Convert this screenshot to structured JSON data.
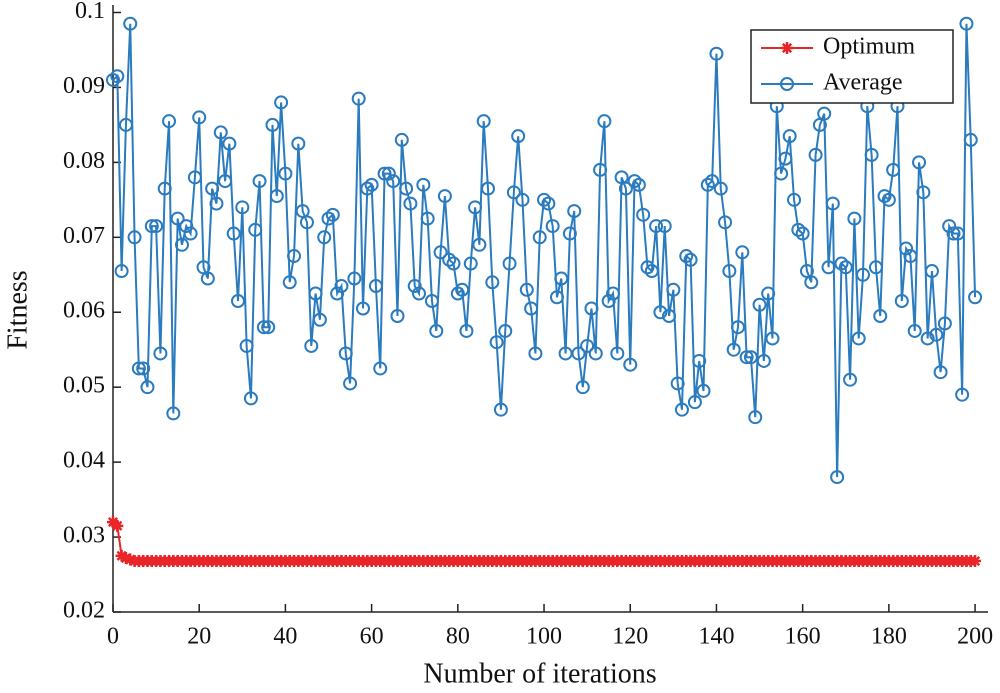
{
  "chart_data": {
    "type": "line",
    "xlabel": "Number of iterations",
    "ylabel": "Fitness",
    "x": [
      0,
      1,
      2,
      3,
      4,
      5,
      6,
      7,
      8,
      9,
      10,
      11,
      12,
      13,
      14,
      15,
      16,
      17,
      18,
      19,
      20,
      21,
      22,
      23,
      24,
      25,
      26,
      27,
      28,
      29,
      30,
      31,
      32,
      33,
      34,
      35,
      36,
      37,
      38,
      39,
      40,
      41,
      42,
      43,
      44,
      45,
      46,
      47,
      48,
      49,
      50,
      51,
      52,
      53,
      54,
      55,
      56,
      57,
      58,
      59,
      60,
      61,
      62,
      63,
      64,
      65,
      66,
      67,
      68,
      69,
      70,
      71,
      72,
      73,
      74,
      75,
      76,
      77,
      78,
      79,
      80,
      81,
      82,
      83,
      84,
      85,
      86,
      87,
      88,
      89,
      90,
      91,
      92,
      93,
      94,
      95,
      96,
      97,
      98,
      99,
      100,
      101,
      102,
      103,
      104,
      105,
      106,
      107,
      108,
      109,
      110,
      111,
      112,
      113,
      114,
      115,
      116,
      117,
      118,
      119,
      120,
      121,
      122,
      123,
      124,
      125,
      126,
      127,
      128,
      129,
      130,
      131,
      132,
      133,
      134,
      135,
      136,
      137,
      138,
      139,
      140,
      141,
      142,
      143,
      144,
      145,
      146,
      147,
      148,
      149,
      150,
      151,
      152,
      153,
      154,
      155,
      156,
      157,
      158,
      159,
      160,
      161,
      162,
      163,
      164,
      165,
      166,
      167,
      168,
      169,
      170,
      171,
      172,
      173,
      174,
      175,
      176,
      177,
      178,
      179,
      180,
      181,
      182,
      183,
      184,
      185,
      186,
      187,
      188,
      189,
      190,
      191,
      192,
      193,
      194,
      195,
      196,
      197,
      198,
      199,
      200
    ],
    "series": [
      {
        "name": "Optimum",
        "color": "#e8262a",
        "marker": "star",
        "values": [
          0.032,
          0.0315,
          0.0275,
          0.0272,
          0.027,
          0.0268,
          0.0268,
          0.0268,
          0.0268,
          0.0268,
          0.0268,
          0.0268,
          0.0268,
          0.0268,
          0.0268,
          0.0268,
          0.0268,
          0.0268,
          0.0268,
          0.0268,
          0.0268,
          0.0268,
          0.0268,
          0.0268,
          0.0268,
          0.0268,
          0.0268,
          0.0268,
          0.0268,
          0.0268,
          0.0268,
          0.0268,
          0.0268,
          0.0268,
          0.0268,
          0.0268,
          0.0268,
          0.0268,
          0.0268,
          0.0268,
          0.0268,
          0.0268,
          0.0268,
          0.0268,
          0.0268,
          0.0268,
          0.0268,
          0.0268,
          0.0268,
          0.0268,
          0.0268,
          0.0268,
          0.0268,
          0.0268,
          0.0268,
          0.0268,
          0.0268,
          0.0268,
          0.0268,
          0.0268,
          0.0268,
          0.0268,
          0.0268,
          0.0268,
          0.0268,
          0.0268,
          0.0268,
          0.0268,
          0.0268,
          0.0268,
          0.0268,
          0.0268,
          0.0268,
          0.0268,
          0.0268,
          0.0268,
          0.0268,
          0.0268,
          0.0268,
          0.0268,
          0.0268,
          0.0268,
          0.0268,
          0.0268,
          0.0268,
          0.0268,
          0.0268,
          0.0268,
          0.0268,
          0.0268,
          0.0268,
          0.0268,
          0.0268,
          0.0268,
          0.0268,
          0.0268,
          0.0268,
          0.0268,
          0.0268,
          0.0268,
          0.0268,
          0.0268,
          0.0268,
          0.0268,
          0.0268,
          0.0268,
          0.0268,
          0.0268,
          0.0268,
          0.0268,
          0.0268,
          0.0268,
          0.0268,
          0.0268,
          0.0268,
          0.0268,
          0.0268,
          0.0268,
          0.0268,
          0.0268,
          0.0268,
          0.0268,
          0.0268,
          0.0268,
          0.0268,
          0.0268,
          0.0268,
          0.0268,
          0.0268,
          0.0268,
          0.0268,
          0.0268,
          0.0268,
          0.0268,
          0.0268,
          0.0268,
          0.0268,
          0.0268,
          0.0268,
          0.0268,
          0.0268,
          0.0268,
          0.0268,
          0.0268,
          0.0268,
          0.0268,
          0.0268,
          0.0268,
          0.0268,
          0.0268,
          0.0268,
          0.0268,
          0.0268,
          0.0268,
          0.0268,
          0.0268,
          0.0268,
          0.0268,
          0.0268,
          0.0268,
          0.0268,
          0.0268,
          0.0268,
          0.0268,
          0.0268,
          0.0268,
          0.0268,
          0.0268,
          0.0268,
          0.0268,
          0.0268,
          0.0268,
          0.0268,
          0.0268,
          0.0268,
          0.0268,
          0.0268,
          0.0268,
          0.0268,
          0.0268,
          0.0268,
          0.0268,
          0.0268,
          0.0268,
          0.0268,
          0.0268,
          0.0268,
          0.0268,
          0.0268,
          0.0268,
          0.0268,
          0.0268,
          0.0268,
          0.0268,
          0.0268,
          0.0268,
          0.0268,
          0.0268,
          0.0268,
          0.0268,
          0.0268
        ]
      },
      {
        "name": "Average",
        "color": "#2b7bbf",
        "marker": "circle",
        "values": [
          0.091,
          0.0915,
          0.0655,
          0.085,
          0.0985,
          0.07,
          0.0525,
          0.0525,
          0.05,
          0.0715,
          0.0715,
          0.0545,
          0.0765,
          0.0855,
          0.0465,
          0.0725,
          0.069,
          0.0715,
          0.0705,
          0.078,
          0.086,
          0.066,
          0.0645,
          0.0765,
          0.0745,
          0.084,
          0.0775,
          0.0825,
          0.0705,
          0.0615,
          0.074,
          0.0555,
          0.0485,
          0.071,
          0.0775,
          0.058,
          0.058,
          0.085,
          0.0755,
          0.088,
          0.0785,
          0.064,
          0.0675,
          0.0825,
          0.0735,
          0.072,
          0.0555,
          0.0625,
          0.059,
          0.07,
          0.0725,
          0.073,
          0.0625,
          0.0635,
          0.0545,
          0.0505,
          0.0645,
          0.0885,
          0.0605,
          0.0765,
          0.077,
          0.0635,
          0.0525,
          0.0785,
          0.0785,
          0.0775,
          0.0595,
          0.083,
          0.0765,
          0.0745,
          0.0635,
          0.0625,
          0.077,
          0.0725,
          0.0615,
          0.0575,
          0.068,
          0.0755,
          0.067,
          0.0665,
          0.0625,
          0.063,
          0.0575,
          0.0665,
          0.074,
          0.069,
          0.0855,
          0.0765,
          0.064,
          0.056,
          0.047,
          0.0575,
          0.0665,
          0.076,
          0.0835,
          0.075,
          0.063,
          0.0605,
          0.0545,
          0.07,
          0.075,
          0.0745,
          0.0715,
          0.062,
          0.0645,
          0.0545,
          0.0705,
          0.0735,
          0.0545,
          0.05,
          0.0555,
          0.0605,
          0.0545,
          0.079,
          0.0855,
          0.0615,
          0.0625,
          0.0545,
          0.078,
          0.0765,
          0.053,
          0.0775,
          0.077,
          0.073,
          0.066,
          0.0655,
          0.0715,
          0.06,
          0.0715,
          0.0595,
          0.063,
          0.0505,
          0.047,
          0.0675,
          0.067,
          0.048,
          0.0535,
          0.0495,
          0.077,
          0.0775,
          0.0945,
          0.0765,
          0.072,
          0.0655,
          0.055,
          0.058,
          0.068,
          0.054,
          0.054,
          0.046,
          0.061,
          0.0535,
          0.0625,
          0.0565,
          0.0875,
          0.0785,
          0.0805,
          0.0835,
          0.075,
          0.071,
          0.0705,
          0.0655,
          0.064,
          0.081,
          0.085,
          0.0865,
          0.066,
          0.0745,
          0.038,
          0.0665,
          0.066,
          0.051,
          0.0725,
          0.0565,
          0.065,
          0.0875,
          0.081,
          0.066,
          0.0595,
          0.0755,
          0.075,
          0.079,
          0.0875,
          0.0615,
          0.0685,
          0.0675,
          0.0575,
          0.08,
          0.076,
          0.0565,
          0.0655,
          0.057,
          0.052,
          0.0585,
          0.0715,
          0.0705,
          0.0705,
          0.049,
          0.0985,
          0.083,
          0.062
        ]
      }
    ],
    "xlim": [
      0,
      203
    ],
    "xticks": [
      0,
      20,
      40,
      60,
      80,
      100,
      120,
      140,
      160,
      180,
      200
    ],
    "ylim": [
      0.02,
      0.101
    ],
    "yticks": [
      0.02,
      0.03,
      0.04,
      0.05,
      0.06,
      0.07,
      0.08,
      0.09,
      0.1
    ],
    "legend": "upper right"
  }
}
